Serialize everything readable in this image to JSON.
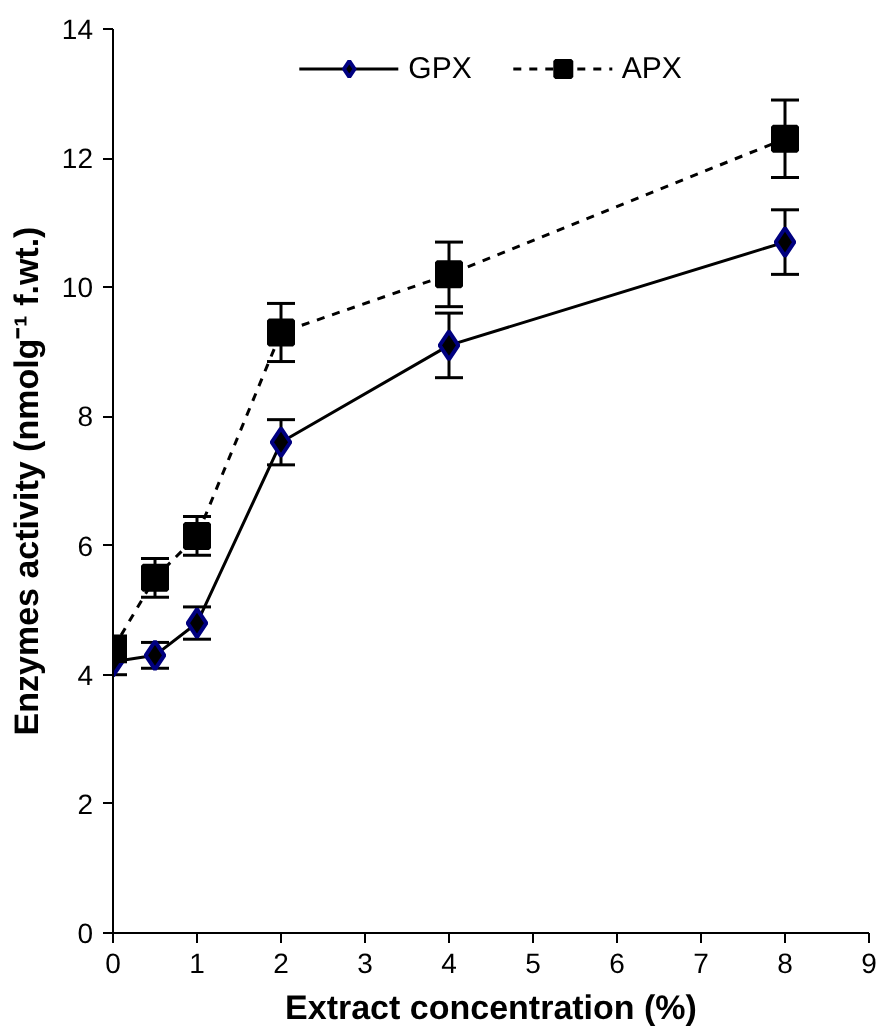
{
  "chart_data": {
    "type": "line",
    "xlabel": "Extract concentration (%)",
    "ylabel": "Enzymes activity (nmolg⁻¹ f.wt.)",
    "x": [
      0,
      0.5,
      1,
      2,
      4,
      8
    ],
    "series": [
      {
        "name": "GPX",
        "color": "#000000",
        "marker": "diamond",
        "line_style": "solid",
        "values": [
          4.2,
          4.3,
          4.8,
          7.6,
          9.1,
          10.7
        ],
        "errors": [
          0.2,
          0.2,
          0.25,
          0.35,
          0.5,
          0.5
        ]
      },
      {
        "name": "APX",
        "color": "#000000",
        "marker": "square",
        "line_style": "dashed",
        "values": [
          4.4,
          5.5,
          6.15,
          9.3,
          10.2,
          12.3
        ],
        "errors": [
          0.2,
          0.3,
          0.3,
          0.45,
          0.5,
          0.6
        ]
      }
    ],
    "xlim": [
      0,
      9
    ],
    "xticks": [
      0,
      1,
      2,
      3,
      4,
      5,
      6,
      7,
      8,
      9
    ],
    "ylim": [
      0,
      14
    ],
    "yticks": [
      0,
      2,
      4,
      6,
      8,
      10,
      12,
      14
    ],
    "grid": false,
    "legend": "top"
  }
}
